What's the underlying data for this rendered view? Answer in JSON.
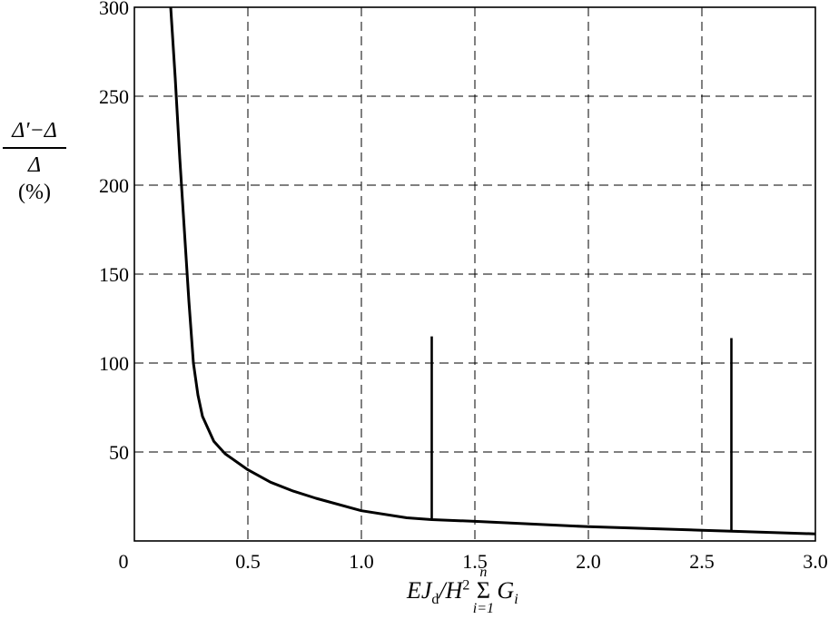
{
  "chart_data": {
    "type": "line",
    "title": "",
    "ylabel": {
      "numerator": "Δ′−Δ",
      "denominator": "Δ",
      "unit": "(%)"
    },
    "xlabel": {
      "lhs": "EJ",
      "lhs_sub": "d",
      "slash": "/H",
      "sup": "2",
      "sum_upper": "n",
      "sum_symbol": "Σ",
      "sum_lower": "i=1",
      "G": "G",
      "G_sub": "i"
    },
    "xlim": [
      0,
      3.0
    ],
    "ylim": [
      0,
      300
    ],
    "x_ticks": [
      "0",
      "0.5",
      "1.0",
      "1.5",
      "2.0",
      "2.5",
      "3.0"
    ],
    "x_tick_values": [
      0,
      0.5,
      1.0,
      1.5,
      2.0,
      2.5,
      3.0
    ],
    "y_ticks": [
      "50",
      "100",
      "150",
      "200",
      "250",
      "300"
    ],
    "y_tick_values": [
      50,
      100,
      150,
      200,
      250,
      300
    ],
    "grid": true,
    "grid_style": "dashed",
    "series": [
      {
        "x": [
          0.16,
          0.18,
          0.2,
          0.22,
          0.24,
          0.26,
          0.28,
          0.3,
          0.35,
          0.4,
          0.5,
          0.6,
          0.7,
          0.8,
          1.0,
          1.2,
          1.31,
          1.5,
          2.0,
          2.5,
          2.63,
          3.0
        ],
        "y": [
          300,
          260,
          215,
          175,
          135,
          100,
          82,
          70,
          56,
          49,
          40,
          33,
          28,
          24,
          17,
          13,
          12,
          11,
          8,
          6,
          5.5,
          4
        ]
      }
    ],
    "vertical_markers": [
      {
        "x": 1.31,
        "y_top": 115
      },
      {
        "x": 2.63,
        "y_top": 114
      }
    ],
    "colors": {
      "line": "#000000",
      "grid": "#000000",
      "background": "#ffffff"
    }
  }
}
